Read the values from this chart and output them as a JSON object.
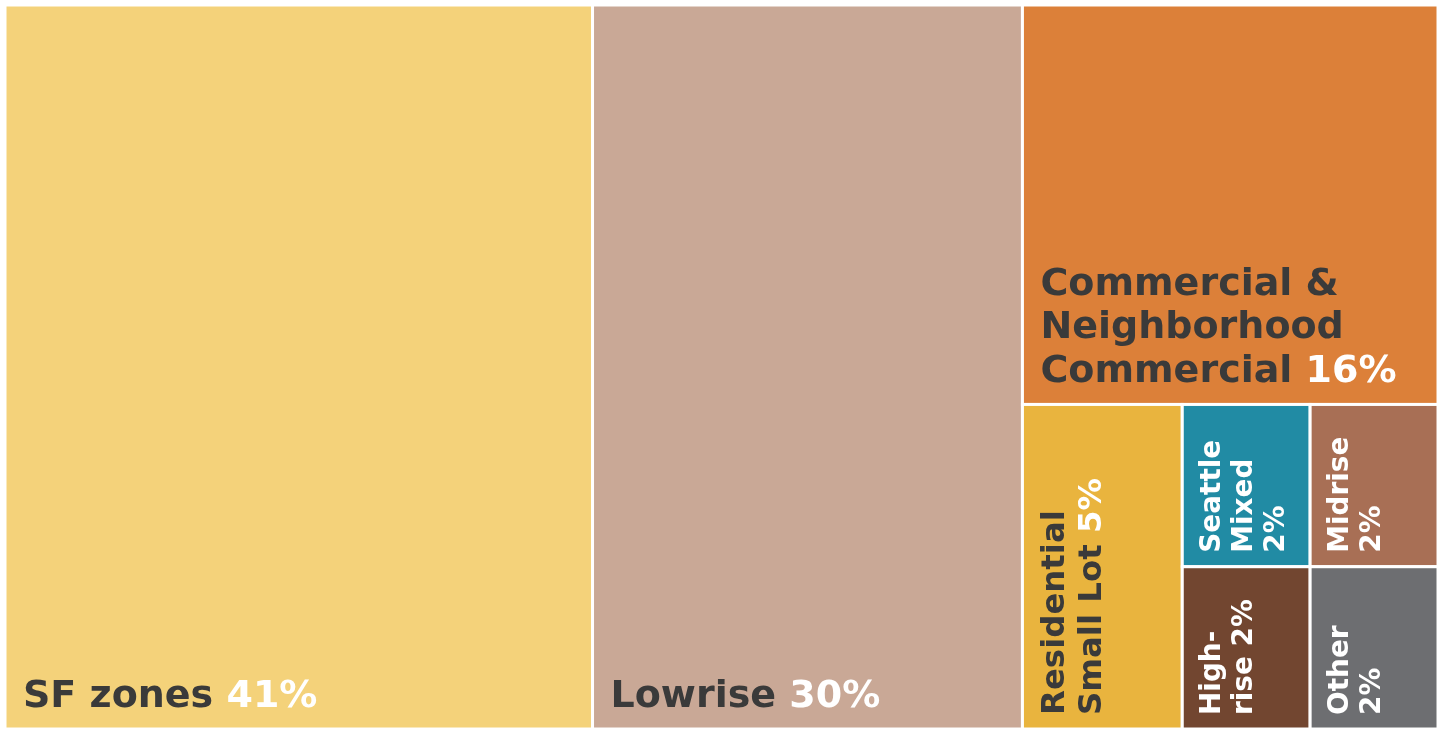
{
  "chart_data": {
    "type": "other",
    "categories": [
      "SF zones",
      "Lowrise",
      "Commercial & Neighborhood Commercial",
      "Residential Small Lot",
      "Seattle Mixed",
      "Midrise",
      "High-rise",
      "Other"
    ],
    "values": [
      41,
      30,
      16,
      5,
      2,
      2,
      2,
      2
    ],
    "value_labels": [
      "41%",
      "30%",
      "16%",
      "5%",
      "2%",
      "2%",
      "2%",
      "2%"
    ],
    "colors": [
      "#f4d27a",
      "#c9a896",
      "#dc8039",
      "#e9b43e",
      "#218ba4",
      "#a86f55",
      "#724630",
      "#6d6e71"
    ]
  }
}
